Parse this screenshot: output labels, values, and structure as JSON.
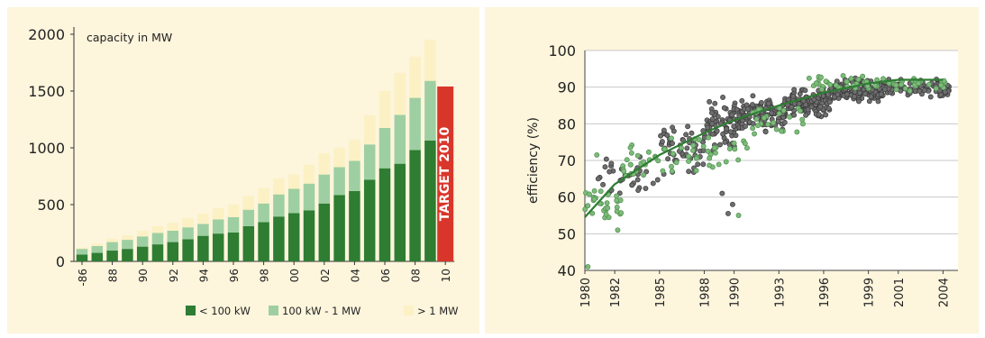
{
  "chart_data": [
    {
      "type": "bar",
      "stacked": true,
      "annotation_title": "capacity in MW",
      "categories": [
        "-86",
        "-87",
        "88",
        "89",
        "90",
        "91",
        "92",
        "93",
        "94",
        "95",
        "96",
        "97",
        "98",
        "99",
        "00",
        "01",
        "02",
        "03",
        "04",
        "05",
        "06",
        "07",
        "08",
        "09",
        "10"
      ],
      "x_tick_labels": [
        "-86",
        "88",
        "90",
        "92",
        "94",
        "96",
        "98",
        "00",
        "02",
        "04",
        "06",
        "08",
        "10"
      ],
      "ylim": [
        0,
        2000
      ],
      "y_ticks": [
        0,
        500,
        1000,
        1500,
        2000
      ],
      "series": [
        {
          "name": "< 100 kW",
          "color": "#2e7d32",
          "values": [
            60,
            75,
            95,
            110,
            130,
            150,
            170,
            195,
            225,
            245,
            255,
            310,
            345,
            395,
            425,
            450,
            510,
            585,
            620,
            720,
            820,
            860,
            980,
            1065,
            null
          ]
        },
        {
          "name": "100 kW - 1 MW",
          "color": "#9ecfa2",
          "values": [
            50,
            60,
            75,
            80,
            90,
            100,
            100,
            105,
            105,
            125,
            135,
            145,
            165,
            195,
            215,
            235,
            255,
            245,
            265,
            310,
            355,
            430,
            460,
            525,
            null
          ]
        },
        {
          "name": "> 1 MW",
          "color": "#fcf1c4",
          "values": [
            10,
            20,
            30,
            40,
            50,
            60,
            70,
            80,
            90,
            100,
            110,
            120,
            135,
            140,
            125,
            165,
            185,
            170,
            185,
            255,
            325,
            370,
            360,
            360,
            null
          ]
        }
      ],
      "target": {
        "category": "10",
        "value": 1540,
        "label": "TARGET 2010",
        "color": "#d9362b"
      },
      "legend_position": "bottom-right",
      "grid": false
    },
    {
      "type": "scatter",
      "ylabel": "efficiency (%)",
      "xlim": [
        1980,
        2005
      ],
      "x_ticks": [
        1980,
        1982,
        1985,
        1988,
        1990,
        1993,
        1996,
        1999,
        2001,
        2004
      ],
      "ylim": [
        40,
        100
      ],
      "y_ticks": [
        40,
        50,
        60,
        70,
        80,
        90,
        100
      ],
      "grid": true,
      "colors": {
        "dark_points": "#6e6e6e",
        "green_points": "#7dbb7a",
        "trend": "#2e7d32"
      },
      "trend_curve": [
        [
          1980,
          54.5
        ],
        [
          1982,
          63.5
        ],
        [
          1985,
          71.5
        ],
        [
          1988,
          77.5
        ],
        [
          1990,
          81
        ],
        [
          1993,
          85
        ],
        [
          1996,
          88.5
        ],
        [
          1999,
          91
        ],
        [
          2001,
          92
        ],
        [
          2004,
          92
        ]
      ],
      "dark_clusters": [
        {
          "x": [
            1980.5,
            1985
          ],
          "y_center": 65,
          "y_spread": 8,
          "count": 35
        },
        {
          "x": [
            1985,
            1988
          ],
          "y_center": 73,
          "y_spread": 9,
          "count": 55
        },
        {
          "x": [
            1988,
            1990.5
          ],
          "y_center": 80,
          "y_spread": 9,
          "count": 85
        },
        {
          "x": [
            1990.5,
            1993.5
          ],
          "y_center": 83,
          "y_spread": 6,
          "count": 120
        },
        {
          "x": [
            1993.5,
            1996.5
          ],
          "y_center": 86,
          "y_spread": 5,
          "count": 140
        },
        {
          "x": [
            1996.5,
            2000
          ],
          "y_center": 89,
          "y_spread": 4,
          "count": 150
        },
        {
          "x": [
            2000,
            2004.5
          ],
          "y_center": 89.5,
          "y_spread": 3.5,
          "count": 90
        }
      ],
      "green_clusters": [
        {
          "x": [
            1980,
            1982.5
          ],
          "y_center": 57,
          "y_spread": 7,
          "count": 30
        },
        {
          "x": [
            1982.5,
            1986
          ],
          "y_center": 70,
          "y_spread": 9,
          "count": 30
        },
        {
          "x": [
            1986,
            1991
          ],
          "y_center": 72,
          "y_spread": 8,
          "count": 30
        },
        {
          "x": [
            1991,
            1995
          ],
          "y_center": 81,
          "y_spread": 6,
          "count": 25
        },
        {
          "x": [
            1995,
            2004.5
          ],
          "y_center": 91,
          "y_spread": 3,
          "count": 60
        }
      ],
      "outliers_dark": [
        [
          1989.6,
          55.5
        ],
        [
          1989.9,
          58
        ],
        [
          1989.2,
          61
        ]
      ],
      "outliers_green": [
        [
          1980.2,
          41
        ],
        [
          1990.3,
          55
        ],
        [
          1980.8,
          71.5
        ],
        [
          1982.2,
          51
        ]
      ]
    }
  ]
}
